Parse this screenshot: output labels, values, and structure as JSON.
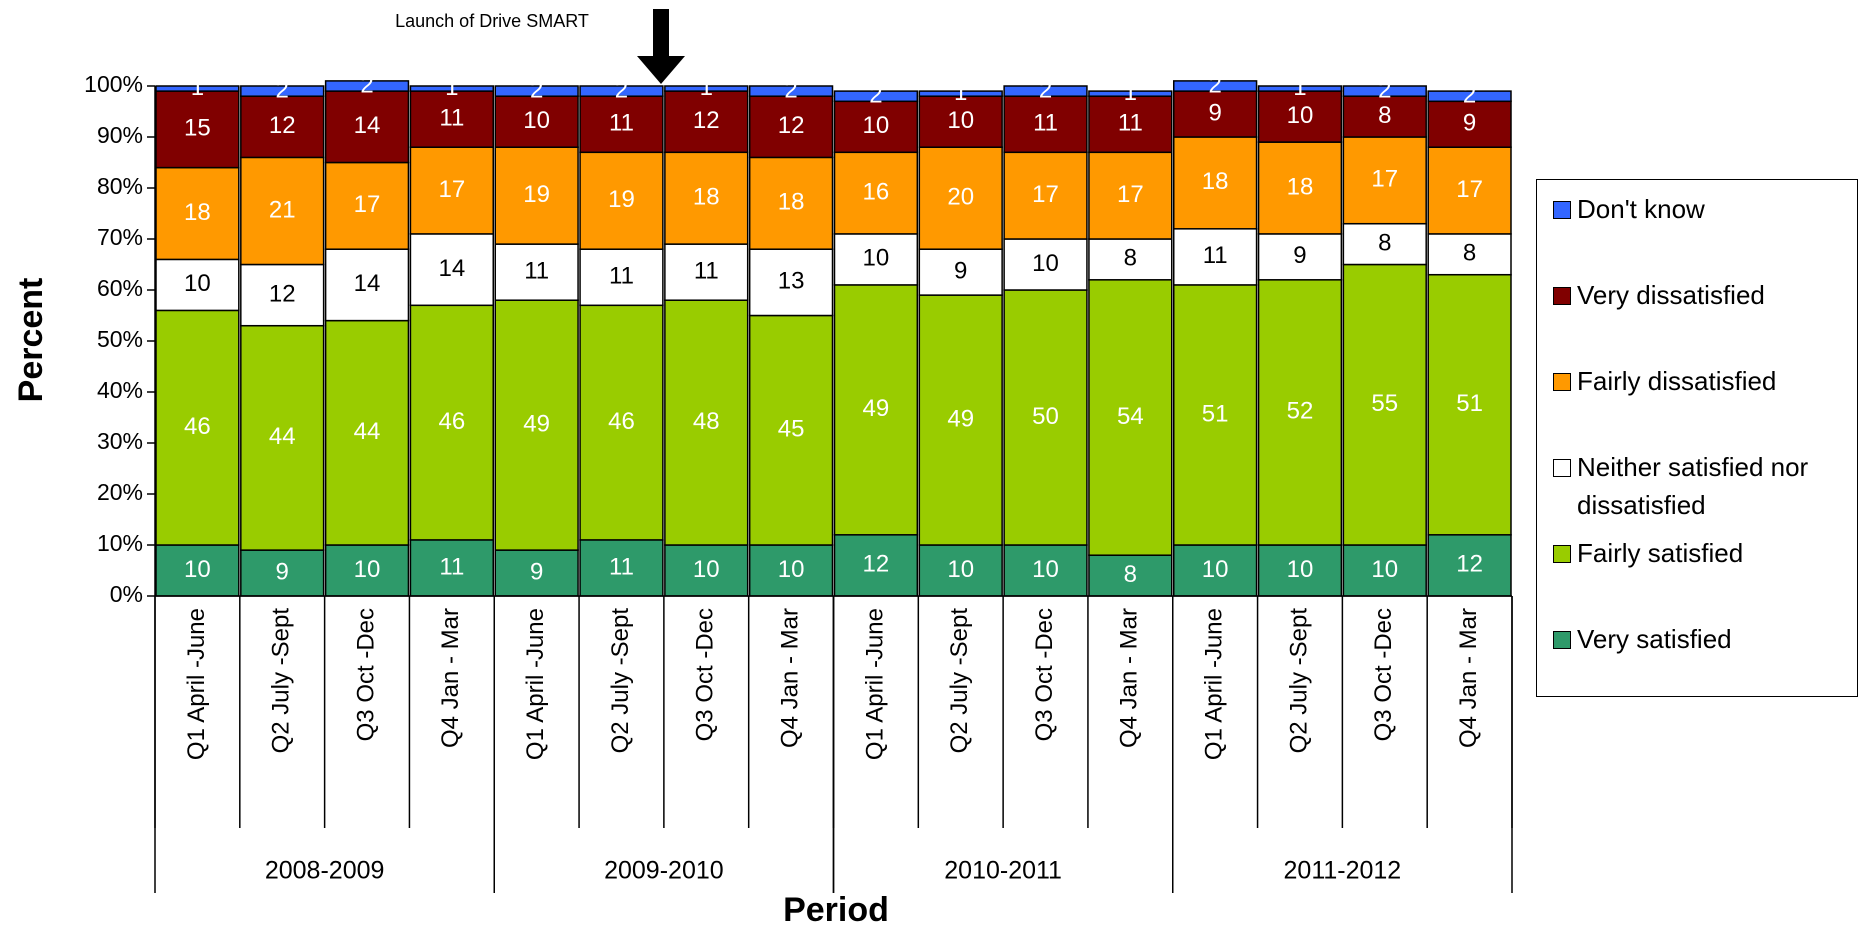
{
  "chart_data": {
    "type": "bar",
    "stacked": true,
    "annotation": "Launch of Drive SMART",
    "xlabel": "Period",
    "ylabel": "Percent",
    "categories": [
      "Q1 April -June",
      "Q2 July -Sept",
      "Q3 Oct -Dec",
      "Q4 Jan - Mar",
      "Q1 April -June",
      "Q2 July -Sept",
      "Q3 Oct -Dec",
      "Q4 Jan - Mar",
      "Q1 April -June",
      "Q2 July -Sept",
      "Q3 Oct -Dec",
      "Q4 Jan - Mar",
      "Q1 April -June",
      "Q2 July -Sept",
      "Q3 Oct -Dec",
      "Q4 Jan - Mar"
    ],
    "groups": [
      "2008-2009",
      "2009-2010",
      "2010-2011",
      "2011-2012"
    ],
    "series": [
      {
        "name": "Very satisfied",
        "color": "#2e9a6a",
        "label_color": "#ffffff",
        "values": [
          10,
          9,
          10,
          11,
          9,
          11,
          10,
          10,
          12,
          10,
          10,
          8,
          10,
          10,
          10,
          12
        ]
      },
      {
        "name": "Fairly satisfied",
        "color": "#99cc00",
        "label_color": "#ffffff",
        "values": [
          46,
          44,
          44,
          46,
          49,
          46,
          48,
          45,
          49,
          49,
          50,
          54,
          51,
          52,
          55,
          51
        ]
      },
      {
        "name": "Neither satisfied nor dissatisfied",
        "color": "#ffffff",
        "label_color": "#000000",
        "values": [
          10,
          12,
          14,
          14,
          11,
          11,
          11,
          13,
          10,
          9,
          10,
          8,
          11,
          9,
          8,
          8
        ]
      },
      {
        "name": "Fairly dissatisfied",
        "color": "#ff9900",
        "label_color": "#ffffff",
        "values": [
          18,
          21,
          17,
          17,
          19,
          19,
          18,
          18,
          16,
          20,
          17,
          17,
          18,
          18,
          17,
          17
        ]
      },
      {
        "name": "Very dissatisfied",
        "color": "#800000",
        "label_color": "#ffffff",
        "values": [
          15,
          12,
          14,
          11,
          10,
          11,
          12,
          12,
          10,
          10,
          11,
          11,
          9,
          10,
          8,
          9
        ]
      },
      {
        "name": "Don't know",
        "color": "#3366ff",
        "label_color": "#ffffff",
        "values": [
          1,
          2,
          2,
          1,
          2,
          2,
          1,
          2,
          2,
          1,
          2,
          1,
          2,
          1,
          2,
          2
        ]
      }
    ],
    "ylim": [
      0,
      100
    ],
    "yticks": [
      {
        "value": 0,
        "label": "0%"
      },
      {
        "value": 10,
        "label": "10%"
      },
      {
        "value": 20,
        "label": "20%"
      },
      {
        "value": 30,
        "label": "30%"
      },
      {
        "value": 40,
        "label": "40%"
      },
      {
        "value": 50,
        "label": "50%"
      },
      {
        "value": 60,
        "label": "60%"
      },
      {
        "value": 70,
        "label": "70%"
      },
      {
        "value": 80,
        "label": "80%"
      },
      {
        "value": 90,
        "label": "90%"
      },
      {
        "value": 100,
        "label": "100%"
      }
    ]
  }
}
